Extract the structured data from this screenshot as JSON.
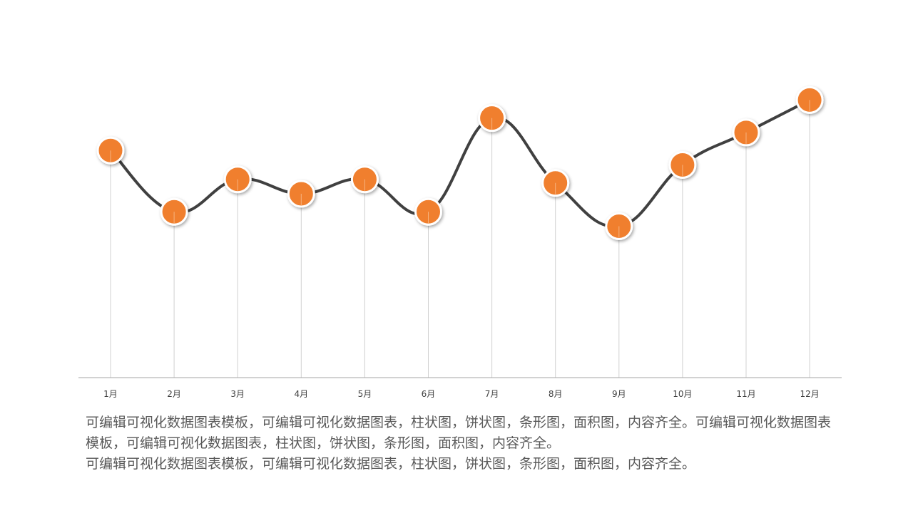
{
  "chart_data": {
    "type": "line",
    "categories": [
      "1月",
      "2月",
      "3月",
      "4月",
      "5月",
      "6月",
      "7月",
      "8月",
      "9月",
      "10月",
      "11月",
      "12月"
    ],
    "series": [
      {
        "values": [
          63,
          46,
          55,
          51,
          55,
          46,
          72,
          54,
          42,
          59,
          68,
          77
        ]
      }
    ],
    "ylim": [
      0,
      100
    ],
    "grid": false,
    "line_color": "#404040",
    "marker_color": "#F07F2E",
    "marker_border_color": "#FFFFFF",
    "drop_line_color": "#D0D0D0",
    "axis_color": "#A6A6A6",
    "tick_label_color": "#404040"
  },
  "description": {
    "paragraph_1": "可编辑可视化数据图表模板，可编辑可视化数据图表，柱状图，饼状图，条形图，面积图，内容齐全。可编辑可视化数据图表模板，可编辑可视化数据图表，柱状图，饼状图，条形图，面积图，内容齐全。",
    "paragraph_2": "可编辑可视化数据图表模板，可编辑可视化数据图表，柱状图，饼状图，条形图，面积图，内容齐全。"
  }
}
